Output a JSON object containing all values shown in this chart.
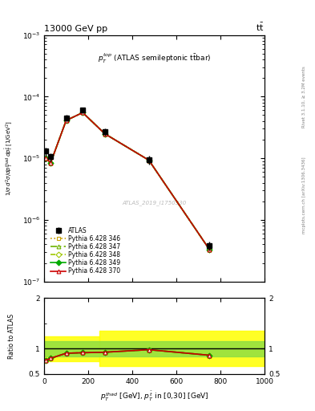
{
  "title_left": "13000 GeV pp",
  "title_right": "tt",
  "annotation": "$p_T^{top}$ (ATLAS semileptonic t$\\bar{t}$bar)",
  "watermark": "ATLAS_2019_I1750330",
  "right_label_top": "Rivet 3.1.10, ≥ 3.2M events",
  "right_label_bot": "mcplots.cern.ch [arXiv:1306.3436]",
  "xlim": [
    0,
    1000
  ],
  "ylim_main": [
    1e-07,
    0.001
  ],
  "ylim_ratio": [
    0.5,
    2.0
  ],
  "x_data": [
    6,
    30,
    100,
    175,
    275,
    475,
    750
  ],
  "atlas_y": [
    1.3e-05,
    1.05e-05,
    4.5e-05,
    6e-05,
    2.7e-05,
    9.5e-06,
    3.8e-07
  ],
  "atlas_yerr_lo": [
    2e-06,
    1.5e-06,
    5e-06,
    7e-06,
    3.5e-06,
    1.5e-06,
    6e-08
  ],
  "atlas_yerr_hi": [
    2e-06,
    1.5e-06,
    5e-06,
    7e-06,
    3.5e-06,
    1.5e-06,
    6e-08
  ],
  "pythia_346_y": [
    1e-05,
    8.5e-06,
    4.1e-05,
    5.5e-05,
    2.5e-05,
    9.3e-06,
    3.3e-07
  ],
  "pythia_347_y": [
    1e-05,
    8.5e-06,
    4.1e-05,
    5.5e-05,
    2.5e-05,
    9.3e-06,
    3.3e-07
  ],
  "pythia_348_y": [
    1e-05,
    8.5e-06,
    4.1e-05,
    5.5e-05,
    2.5e-05,
    9.3e-06,
    3.3e-07
  ],
  "pythia_349_y": [
    1e-05,
    8.5e-06,
    4.1e-05,
    5.5e-05,
    2.5e-05,
    9.3e-06,
    3.3e-07
  ],
  "pythia_370_y": [
    1e-05,
    8.5e-06,
    4.1e-05,
    5.5e-05,
    2.5e-05,
    9.3e-06,
    3.3e-07
  ],
  "ratio_346": [
    0.77,
    0.81,
    0.91,
    0.92,
    0.93,
    0.98,
    0.87
  ],
  "ratio_347": [
    0.77,
    0.81,
    0.91,
    0.92,
    0.93,
    0.98,
    0.87
  ],
  "ratio_348": [
    0.77,
    0.81,
    0.91,
    0.92,
    0.93,
    0.98,
    0.87
  ],
  "ratio_349": [
    0.77,
    0.81,
    0.91,
    0.92,
    0.93,
    0.98,
    0.87
  ],
  "ratio_370": [
    0.77,
    0.81,
    0.91,
    0.92,
    0.93,
    0.98,
    0.87
  ],
  "color_346": "#c8a000",
  "color_347": "#6db300",
  "color_348": "#a0c800",
  "color_349": "#00aa00",
  "color_370": "#cc0000",
  "color_atlas": "black",
  "band_yellow_lo1": 0.75,
  "band_yellow_hi1": 1.25,
  "band_yellow_lo2": 0.65,
  "band_yellow_hi2": 1.35,
  "band_yellow_split": 250,
  "band_green_lo": 0.85,
  "band_green_hi": 1.15
}
